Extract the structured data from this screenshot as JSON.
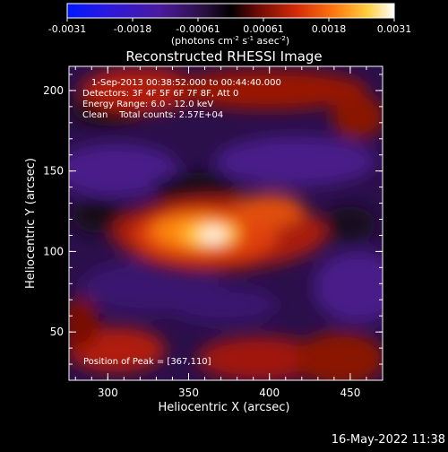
{
  "colorbar": {
    "ticks": [
      "-0.0031",
      "-0.0018",
      "-0.00061",
      "0.00061",
      "0.0018",
      "0.0031"
    ],
    "units_text": "(photons cm",
    "units_sup1": "-2",
    "units_mid": " s",
    "units_sup2": "-1",
    "units_mid2": " asec",
    "units_sup3": "-2",
    "units_end": ")",
    "colors": [
      "#0018ff",
      "#3a18d0",
      "#5a1a90",
      "#241020",
      "#2a0a06",
      "#8a0d05",
      "#d42a08",
      "#ff8a10",
      "#ffe060",
      "#ffffff"
    ]
  },
  "chart_data": {
    "type": "heatmap",
    "title": "Reconstructed RHESSI Image",
    "xlabel": "Heliocentric X (arcsec)",
    "ylabel": "Heliocentric Y (arcsec)",
    "x_ticks": [
      "300",
      "350",
      "400",
      "450"
    ],
    "y_ticks": [
      "50",
      "100",
      "150",
      "200"
    ],
    "xlim": [
      276,
      470
    ],
    "ylim": [
      20,
      215
    ],
    "value_range": [
      -0.0031,
      0.0031
    ],
    "peak_position": [
      367,
      110
    ],
    "annotations": [
      "1-Sep-2013 00:38:52.000 to 00:44:40.000",
      "Detectors: 3F 4F 5F 6F 7F 8F, Att 0",
      "Energy Range: 6.0 - 12.0 keV",
      "Clean    Total counts: 2.57E+04",
      "Position of Peak = [367,110]"
    ]
  },
  "footer": {
    "timestamp": "16-May-2022 11:38"
  }
}
